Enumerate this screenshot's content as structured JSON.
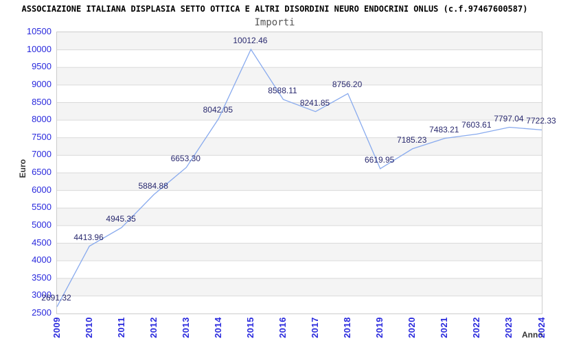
{
  "header": {
    "title": "ASSOCIAZIONE ITALIANA DISPLASIA SETTO OTTICA E ALTRI DISORDINI NEURO ENDOCRINI ONLUS (c.f.97467600587)",
    "subtitle": "Importi"
  },
  "chart_data": {
    "type": "line",
    "title": "Importi",
    "xlabel": "Anno",
    "ylabel": "Euro",
    "categories": [
      "2009",
      "2010",
      "2011",
      "2012",
      "2013",
      "2014",
      "2015",
      "2016",
      "2017",
      "2018",
      "2019",
      "2020",
      "2021",
      "2022",
      "2023",
      "2024"
    ],
    "values": [
      2691.32,
      4413.96,
      4945.35,
      5884.88,
      6653.3,
      8042.05,
      10012.46,
      8588.11,
      8241.85,
      8756.2,
      6619.95,
      7185.23,
      7483.21,
      7603.61,
      7797.04,
      7722.33
    ],
    "point_labels": [
      "2691.32",
      "4413.96",
      "4945.35",
      "5884.88",
      "6653.30",
      "8042.05",
      "10012.46",
      "8588.11",
      "8241.85",
      "8756.20",
      "6619.95",
      "7185.23",
      "7483.21",
      "7603.61",
      "7797.04",
      "7722.33"
    ],
    "ylim": [
      2500,
      10500
    ],
    "y_tick_step": 500,
    "y_tick_labels": [
      "10500",
      "10000",
      "9500",
      "9000",
      "8500",
      "8000",
      "7500",
      "7000",
      "6500",
      "6000",
      "5500",
      "5000",
      "4500",
      "4000",
      "3500",
      "3000",
      "2500"
    ],
    "grid": "horizontal-bands-alternating",
    "legend_position": "none",
    "series_name": "Importi"
  },
  "colors": {
    "axis_tick_text": "#2929dd",
    "point_label_text": "#28286e",
    "line": "#88aaee",
    "band_fill": "#f4f4f4",
    "grid_line": "#d9d9d9",
    "plot_border": "#cccccc",
    "title_text": "#000000",
    "subtitle_text": "#555555",
    "axis_title_text": "#333333"
  }
}
